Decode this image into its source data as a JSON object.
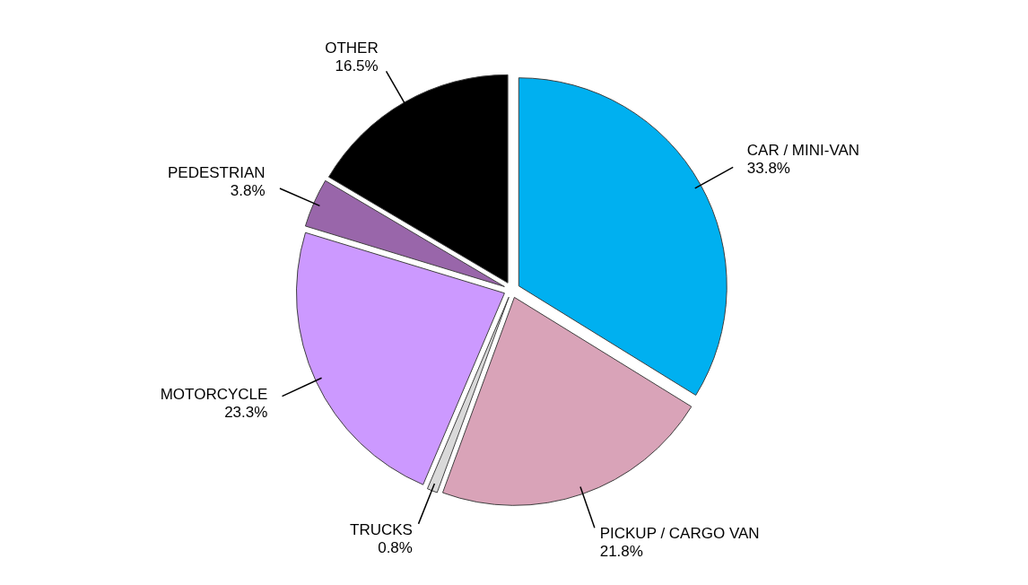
{
  "chart_data": {
    "type": "pie",
    "categories": [
      "CAR / MINI-VAN",
      "PICKUP / CARGO VAN",
      "TRUCKS",
      "MOTORCYCLE",
      "PEDESTRIAN",
      "OTHER"
    ],
    "values": [
      33.8,
      21.8,
      0.8,
      23.3,
      3.8,
      16.5
    ],
    "colors": [
      "#00b0f0",
      "#d9a3b8",
      "#d9d9d9",
      "#cc99ff",
      "#9966aa",
      "#000000"
    ],
    "value_labels": [
      "33.8%",
      "21.8%",
      "0.8%",
      "23.3%",
      "3.8%",
      "16.5%"
    ]
  }
}
